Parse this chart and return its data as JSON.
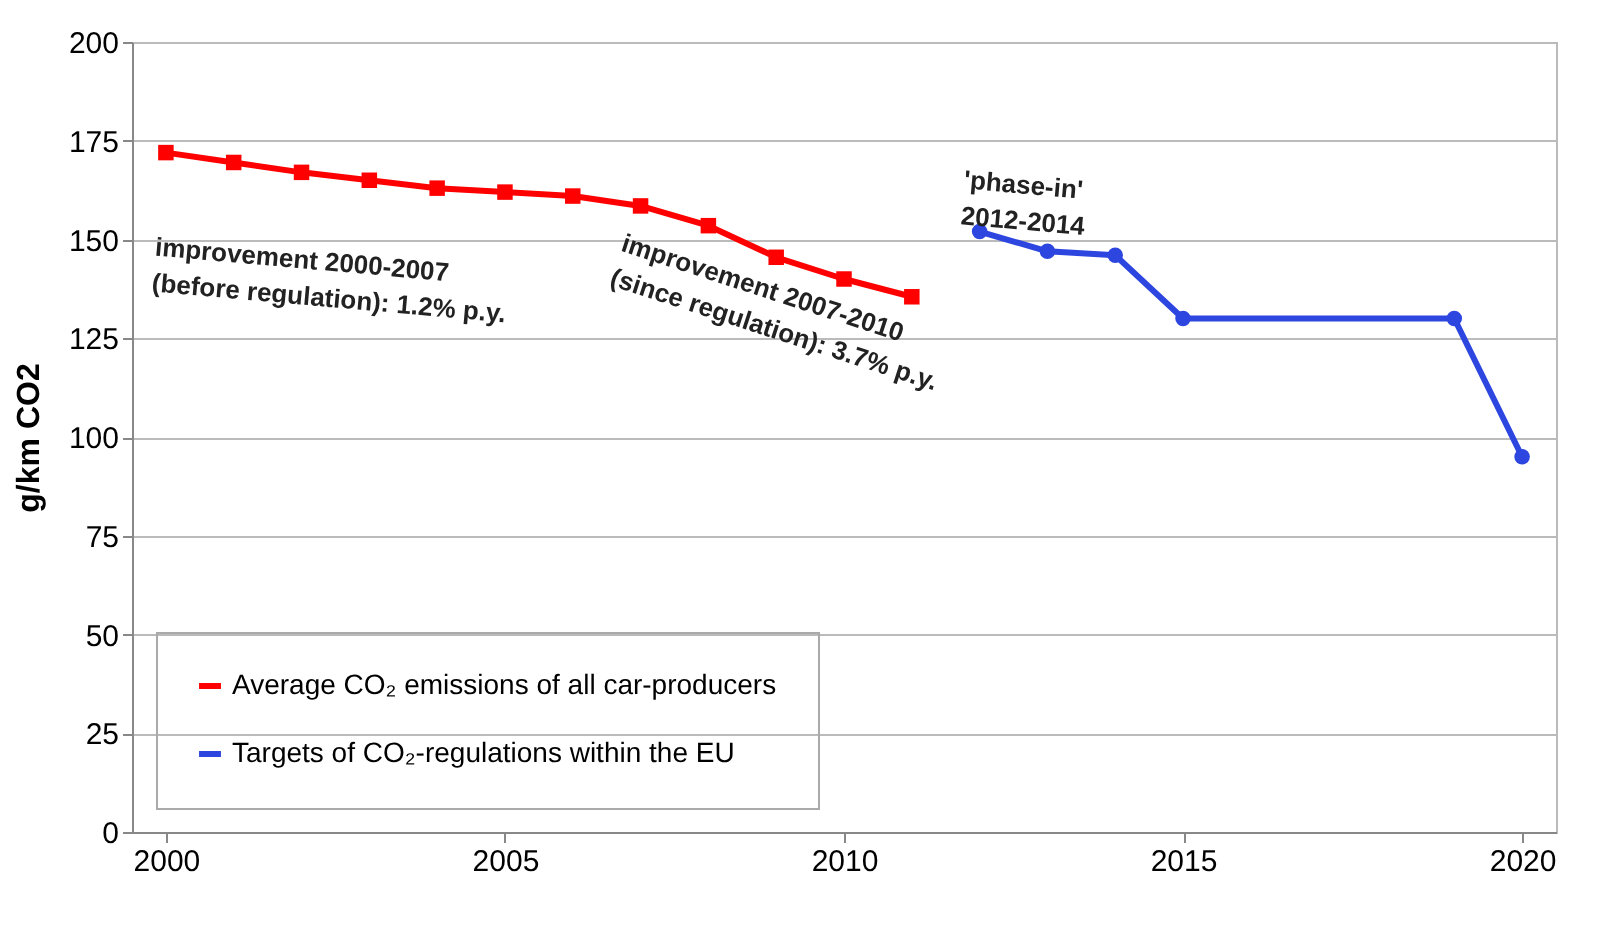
{
  "chart_data": {
    "type": "line",
    "ylabel": "g/km CO2",
    "xlim": [
      1999.5,
      2020.5
    ],
    "ylim": [
      0,
      200
    ],
    "xticks": [
      2000,
      2005,
      2010,
      2015,
      2020
    ],
    "yticks": [
      0,
      25,
      50,
      75,
      100,
      125,
      150,
      175,
      200
    ],
    "grid": "y",
    "legend": "bottom left",
    "series": [
      {
        "name": "Average CO₂ emissions of all car-producers",
        "color": "#ff0000",
        "marker": "square",
        "x": [
          2000,
          2001,
          2002,
          2003,
          2004,
          2005,
          2006,
          2007,
          2008,
          2009,
          2010,
          2011
        ],
        "values": [
          172,
          169.5,
          167,
          165,
          163,
          162,
          161,
          158.5,
          153.5,
          145.5,
          140,
          135.5
        ]
      },
      {
        "name": "Targets of CO₂-regulations within the EU",
        "color": "#2e46e0",
        "marker": "circle",
        "x": [
          2012,
          2013,
          2014,
          2015,
          2019,
          2020
        ],
        "values": [
          152,
          147,
          146,
          130,
          130,
          95
        ]
      }
    ],
    "annotations": [
      "improvement 2000-2007\n(before regulation): 1.2% p.y.",
      "improvement 2007-2010\n(since regulation): 3.7% p.y.",
      "'phase-in'\n2012-2014"
    ]
  }
}
